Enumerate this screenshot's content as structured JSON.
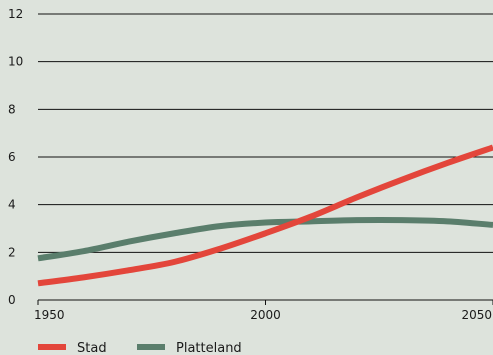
{
  "chart_data": {
    "type": "line",
    "title": "",
    "xlabel": "",
    "ylabel": "",
    "xlim": [
      1950,
      2050
    ],
    "ylim": [
      0,
      12
    ],
    "x_ticks": [
      "1950",
      "2000",
      "2050"
    ],
    "y_ticks": [
      "0",
      "2",
      "4",
      "6",
      "8",
      "10",
      "12"
    ],
    "grid": "horizontal",
    "legend_position": "bottom-left",
    "background_color": "#dde3dc",
    "series": [
      {
        "name": "Stad",
        "color": "#e3463b",
        "x": [
          1950,
          1960,
          1970,
          1980,
          1990,
          2000,
          2010,
          2020,
          2030,
          2040,
          2050
        ],
        "values": [
          0.7,
          0.95,
          1.25,
          1.6,
          2.15,
          2.8,
          3.5,
          4.3,
          5.05,
          5.75,
          6.4
        ]
      },
      {
        "name": "Platteland",
        "color": "#5a7e6c",
        "x": [
          1950,
          1960,
          1970,
          1980,
          1990,
          2000,
          2010,
          2020,
          2030,
          2040,
          2050
        ],
        "values": [
          1.75,
          2.05,
          2.45,
          2.8,
          3.1,
          3.25,
          3.3,
          3.35,
          3.35,
          3.3,
          3.15
        ]
      }
    ]
  }
}
